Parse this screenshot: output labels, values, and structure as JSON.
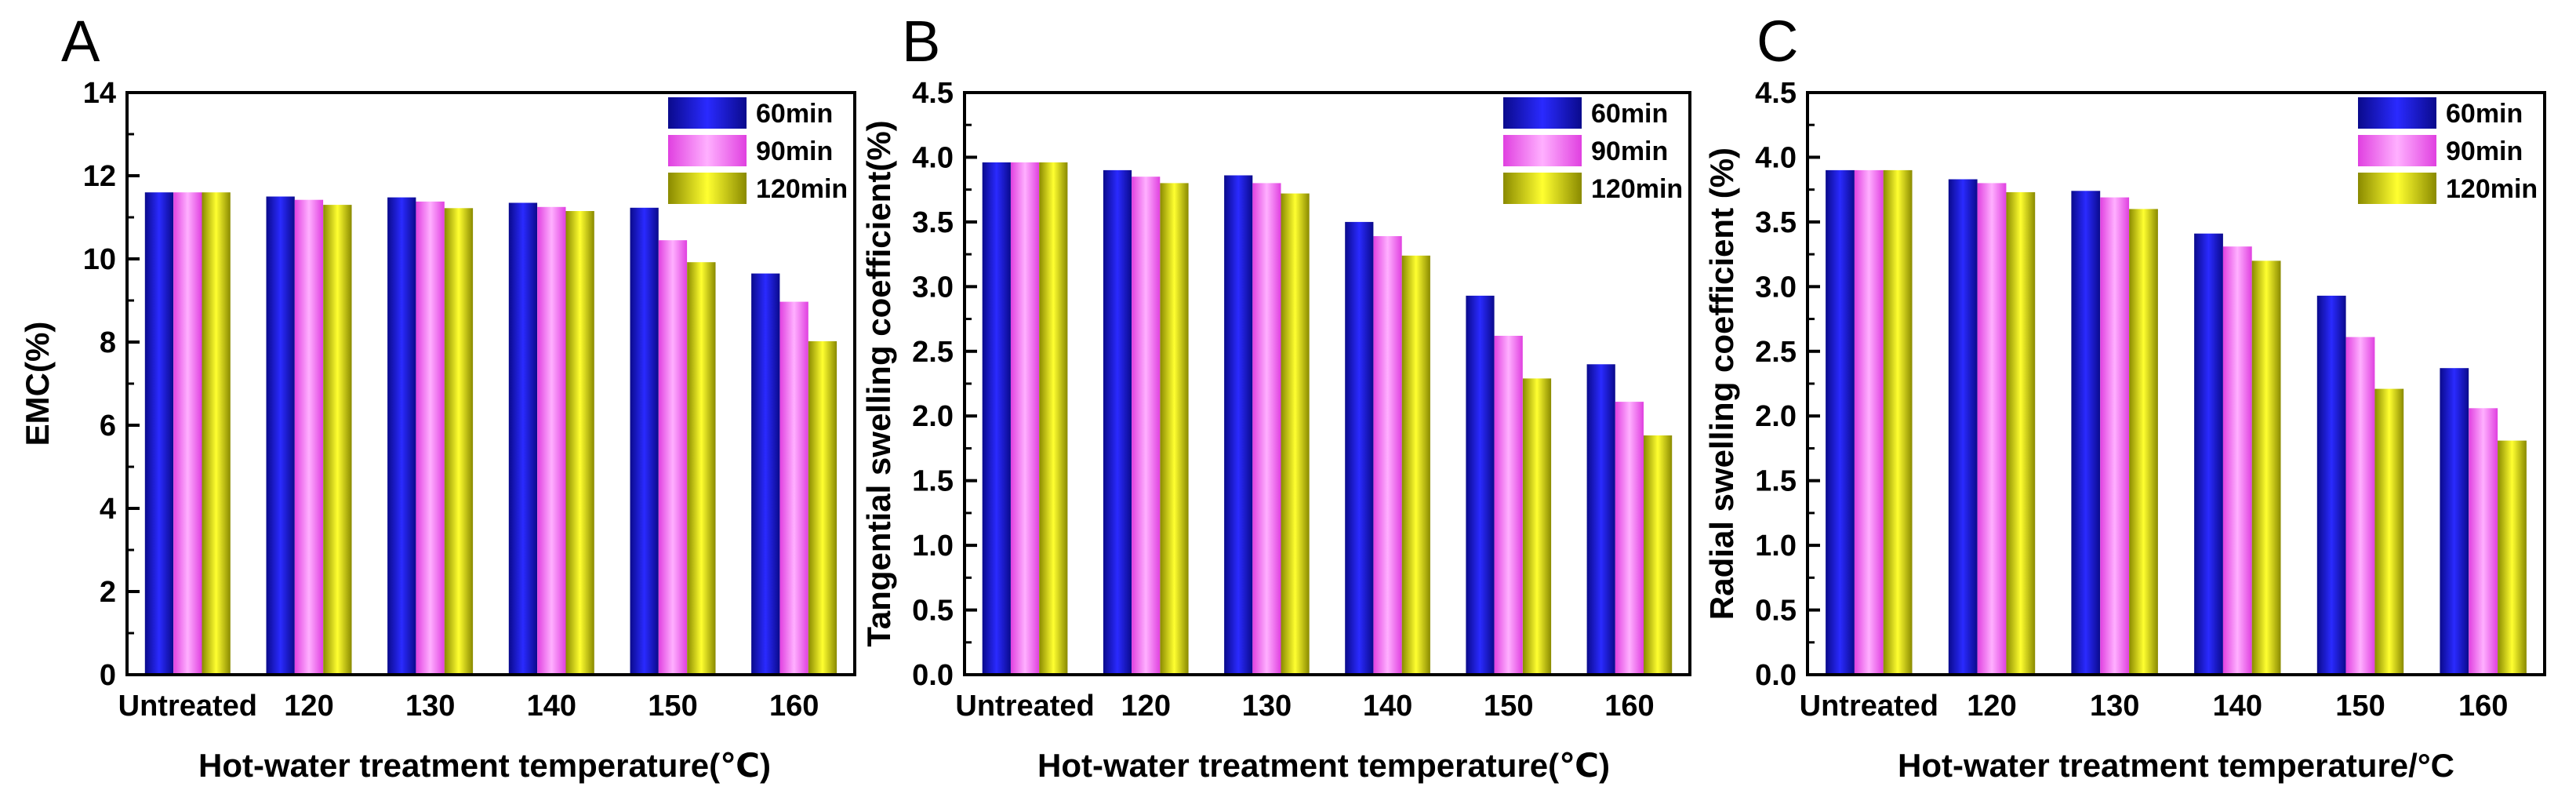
{
  "chart_data": [
    {
      "type": "bar",
      "panel_label": "A",
      "categories": [
        "Untreated",
        "120",
        "130",
        "140",
        "150",
        "160"
      ],
      "series": [
        {
          "name": "60min",
          "color": "#1a1ad0",
          "values": [
            11.6,
            11.5,
            11.48,
            11.35,
            11.23,
            9.65
          ]
        },
        {
          "name": "90min",
          "color": "#ff66ff",
          "values": [
            11.6,
            11.42,
            11.38,
            11.25,
            10.45,
            8.97
          ]
        },
        {
          "name": "120min",
          "color": "#d8d810",
          "values": [
            11.6,
            11.3,
            11.22,
            11.15,
            9.92,
            8.02
          ]
        }
      ],
      "xlabel": "Hot-water treatment temperature(℃)",
      "ylabel": "EMC(%)",
      "ylim": [
        0,
        14
      ],
      "yticks": [
        "0",
        "2",
        "4",
        "6",
        "8",
        "10",
        "12",
        "14"
      ],
      "legend": "top-right"
    },
    {
      "type": "bar",
      "panel_label": "B",
      "categories": [
        "Untreated",
        "120",
        "130",
        "140",
        "150",
        "160"
      ],
      "series": [
        {
          "name": "60min",
          "color": "#1a1ad0",
          "values": [
            3.96,
            3.9,
            3.86,
            3.5,
            2.93,
            2.4
          ]
        },
        {
          "name": "90min",
          "color": "#ff66ff",
          "values": [
            3.96,
            3.85,
            3.8,
            3.39,
            2.62,
            2.11
          ]
        },
        {
          "name": "120min",
          "color": "#d8d810",
          "values": [
            3.96,
            3.8,
            3.72,
            3.24,
            2.29,
            1.85
          ]
        }
      ],
      "xlabel": "Hot-water treatment temperature(℃)",
      "ylabel": "Tangential swelling coefficient(%)",
      "ylim": [
        0,
        4.5
      ],
      "yticks": [
        "0.0",
        "0.5",
        "1.0",
        "1.5",
        "2.0",
        "2.5",
        "3.0",
        "3.5",
        "4.0",
        "4.5"
      ],
      "legend": "top-right"
    },
    {
      "type": "bar",
      "panel_label": "C",
      "categories": [
        "Untreated",
        "120",
        "130",
        "140",
        "150",
        "160"
      ],
      "series": [
        {
          "name": "60min",
          "color": "#1a1ad0",
          "values": [
            3.9,
            3.83,
            3.74,
            3.41,
            2.93,
            2.37
          ]
        },
        {
          "name": "90min",
          "color": "#ff66ff",
          "values": [
            3.9,
            3.8,
            3.69,
            3.31,
            2.61,
            2.06
          ]
        },
        {
          "name": "120min",
          "color": "#d8d810",
          "values": [
            3.9,
            3.73,
            3.6,
            3.2,
            2.21,
            1.81
          ]
        }
      ],
      "xlabel": "Hot-water treatment temperature/°C",
      "ylabel": "Radial swelling coefficient (%)",
      "ylim": [
        0,
        4.5
      ],
      "yticks": [
        "0.0",
        "0.5",
        "1.0",
        "1.5",
        "2.0",
        "2.5",
        "3.0",
        "3.5",
        "4.0",
        "4.5"
      ],
      "legend": "top-right"
    }
  ]
}
